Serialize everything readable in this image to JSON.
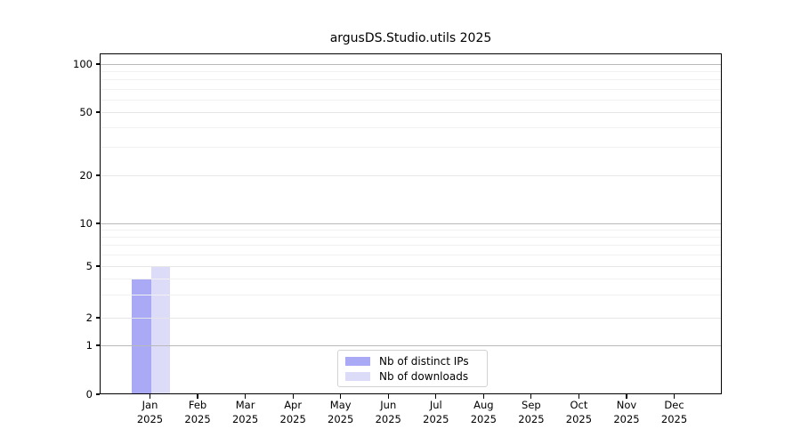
{
  "title": "argusDS.Studio.utils 2025",
  "legend": {
    "items": [
      {
        "label": "Nb of distinct IPs",
        "color": "#a9a9f5"
      },
      {
        "label": "Nb of downloads",
        "color": "#dcdcf8"
      }
    ]
  },
  "chart_data": {
    "type": "bar",
    "title": "argusDS.Studio.utils 2025",
    "categories": [
      {
        "month": "Jan",
        "year": "2025"
      },
      {
        "month": "Feb",
        "year": "2025"
      },
      {
        "month": "Mar",
        "year": "2025"
      },
      {
        "month": "Apr",
        "year": "2025"
      },
      {
        "month": "May",
        "year": "2025"
      },
      {
        "month": "Jun",
        "year": "2025"
      },
      {
        "month": "Jul",
        "year": "2025"
      },
      {
        "month": "Aug",
        "year": "2025"
      },
      {
        "month": "Sep",
        "year": "2025"
      },
      {
        "month": "Oct",
        "year": "2025"
      },
      {
        "month": "Nov",
        "year": "2025"
      },
      {
        "month": "Dec",
        "year": "2025"
      }
    ],
    "series": [
      {
        "name": "Nb of distinct IPs",
        "color": "#a9a9f5",
        "values": [
          4,
          0,
          0,
          0,
          0,
          0,
          0,
          0,
          0,
          0,
          0,
          0
        ]
      },
      {
        "name": "Nb of downloads",
        "color": "#dcdcf8",
        "values": [
          5,
          0,
          0,
          0,
          0,
          0,
          0,
          0,
          0,
          0,
          0,
          0
        ]
      }
    ],
    "yscale": "symlog",
    "y_tick_labels": [
      0,
      1,
      2,
      5,
      10,
      20,
      50,
      100
    ],
    "y_major_decades": [
      1,
      10,
      100
    ],
    "y_minor_gridlines": [
      2,
      3,
      4,
      5,
      6,
      7,
      8,
      9,
      20,
      30,
      40,
      50,
      60,
      70,
      80,
      90
    ],
    "ylim": [
      0,
      117
    ],
    "grid": "horizontal-only",
    "legend_position": "lower-center"
  }
}
